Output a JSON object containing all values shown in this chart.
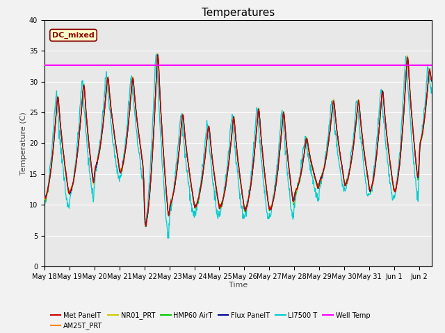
{
  "title": "Temperatures",
  "xlabel": "Time",
  "ylabel": "Temperature (C)",
  "ylim": [
    0,
    40
  ],
  "well_temp": 32.7,
  "annotation_text": "DC_mixed",
  "series_colors": {
    "Met PanelT": "#cc0000",
    "AM25T_PRT": "#ff8800",
    "NR01_PRT": "#cccc00",
    "HMP60 AirT": "#00cc00",
    "Flux PanelT": "#000099",
    "LI7500 T": "#00cccc",
    "Well Temp": "#ff00ff"
  },
  "background_color": "#e8e8e8",
  "title_fontsize": 11,
  "tick_fontsize": 7,
  "label_fontsize": 8
}
